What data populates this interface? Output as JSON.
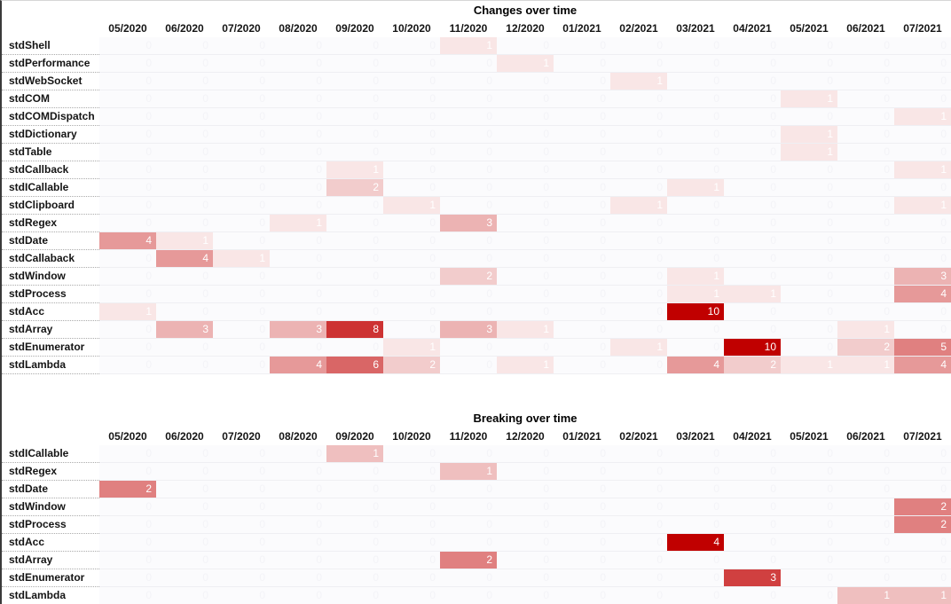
{
  "colors": {
    "heat_min": "#FFFFFF",
    "heat_max": "#C00000",
    "zero_cell_bg": "#FBFBFD",
    "value_text": "#FFFFFF",
    "label_text": "#141414"
  },
  "columns": [
    "05/2020",
    "06/2020",
    "07/2020",
    "08/2020",
    "09/2020",
    "10/2020",
    "11/2020",
    "12/2020",
    "01/2021",
    "02/2021",
    "03/2021",
    "04/2021",
    "05/2021",
    "06/2021",
    "07/2021"
  ],
  "chart_data": [
    {
      "type": "heatmap",
      "title": "Changes over time",
      "x": [
        "05/2020",
        "06/2020",
        "07/2020",
        "08/2020",
        "09/2020",
        "10/2020",
        "11/2020",
        "12/2020",
        "01/2021",
        "02/2021",
        "03/2021",
        "04/2021",
        "05/2021",
        "06/2021",
        "07/2021"
      ],
      "rows": [
        "stdShell",
        "stdPerformance",
        "stdWebSocket",
        "stdCOM",
        "stdCOMDispatch",
        "stdDictionary",
        "stdTable",
        "stdCallback",
        "stdICallable",
        "stdClipboard",
        "stdRegex",
        "stdDate",
        "stdCallaback",
        "stdWindow",
        "stdProcess",
        "stdAcc",
        "stdArray",
        "stdEnumerator",
        "stdLambda"
      ],
      "values": [
        [
          0,
          0,
          0,
          0,
          0,
          0,
          1,
          0,
          0,
          0,
          0,
          0,
          0,
          0,
          0
        ],
        [
          0,
          0,
          0,
          0,
          0,
          0,
          0,
          1,
          0,
          0,
          0,
          0,
          0,
          0,
          0
        ],
        [
          0,
          0,
          0,
          0,
          0,
          0,
          0,
          0,
          0,
          1,
          0,
          0,
          0,
          0,
          0
        ],
        [
          0,
          0,
          0,
          0,
          0,
          0,
          0,
          0,
          0,
          0,
          0,
          0,
          1,
          0,
          0
        ],
        [
          0,
          0,
          0,
          0,
          0,
          0,
          0,
          0,
          0,
          0,
          0,
          0,
          0,
          0,
          1
        ],
        [
          0,
          0,
          0,
          0,
          0,
          0,
          0,
          0,
          0,
          0,
          0,
          0,
          1,
          0,
          0
        ],
        [
          0,
          0,
          0,
          0,
          0,
          0,
          0,
          0,
          0,
          0,
          0,
          0,
          1,
          0,
          0
        ],
        [
          0,
          0,
          0,
          0,
          1,
          0,
          0,
          0,
          0,
          0,
          0,
          0,
          0,
          0,
          1
        ],
        [
          0,
          0,
          0,
          0,
          2,
          0,
          0,
          0,
          0,
          0,
          1,
          0,
          0,
          0,
          0
        ],
        [
          0,
          0,
          0,
          0,
          0,
          1,
          0,
          0,
          0,
          1,
          0,
          0,
          0,
          0,
          1
        ],
        [
          0,
          0,
          0,
          1,
          0,
          0,
          3,
          0,
          0,
          0,
          0,
          0,
          0,
          0,
          0
        ],
        [
          4,
          1,
          0,
          0,
          0,
          0,
          0,
          0,
          0,
          0,
          0,
          0,
          0,
          0,
          0
        ],
        [
          0,
          4,
          1,
          0,
          0,
          0,
          0,
          0,
          0,
          0,
          0,
          0,
          0,
          0,
          0
        ],
        [
          0,
          0,
          0,
          0,
          0,
          0,
          2,
          0,
          0,
          0,
          1,
          0,
          0,
          0,
          3
        ],
        [
          0,
          0,
          0,
          0,
          0,
          0,
          0,
          0,
          0,
          0,
          1,
          1,
          0,
          0,
          4
        ],
        [
          1,
          0,
          0,
          0,
          0,
          0,
          0,
          0,
          0,
          0,
          10,
          0,
          0,
          0,
          0
        ],
        [
          0,
          3,
          0,
          3,
          8,
          0,
          3,
          1,
          0,
          0,
          0,
          0,
          0,
          1,
          0
        ],
        [
          0,
          0,
          0,
          0,
          0,
          1,
          0,
          0,
          0,
          1,
          0,
          10,
          0,
          2,
          5
        ],
        [
          0,
          0,
          0,
          4,
          6,
          2,
          0,
          1,
          0,
          0,
          4,
          2,
          1,
          1,
          4
        ]
      ],
      "color_scale": {
        "min": 0,
        "max": 10,
        "min_color": "#FFFFFF",
        "max_color": "#C00000"
      },
      "legend": false,
      "grid": false
    },
    {
      "type": "heatmap",
      "title": "Breaking over time",
      "x": [
        "05/2020",
        "06/2020",
        "07/2020",
        "08/2020",
        "09/2020",
        "10/2020",
        "11/2020",
        "12/2020",
        "01/2021",
        "02/2021",
        "03/2021",
        "04/2021",
        "05/2021",
        "06/2021",
        "07/2021"
      ],
      "rows": [
        "stdICallable",
        "stdRegex",
        "stdDate",
        "stdWindow",
        "stdProcess",
        "stdAcc",
        "stdArray",
        "stdEnumerator",
        "stdLambda"
      ],
      "values": [
        [
          0,
          0,
          0,
          0,
          1,
          0,
          0,
          0,
          0,
          0,
          0,
          0,
          0,
          0,
          0
        ],
        [
          0,
          0,
          0,
          0,
          0,
          0,
          1,
          0,
          0,
          0,
          0,
          0,
          0,
          0,
          0
        ],
        [
          2,
          0,
          0,
          0,
          0,
          0,
          0,
          0,
          0,
          0,
          0,
          0,
          0,
          0,
          0
        ],
        [
          0,
          0,
          0,
          0,
          0,
          0,
          0,
          0,
          0,
          0,
          0,
          0,
          0,
          0,
          2
        ],
        [
          0,
          0,
          0,
          0,
          0,
          0,
          0,
          0,
          0,
          0,
          0,
          0,
          0,
          0,
          2
        ],
        [
          0,
          0,
          0,
          0,
          0,
          0,
          0,
          0,
          0,
          0,
          4,
          0,
          0,
          0,
          0
        ],
        [
          0,
          0,
          0,
          0,
          0,
          0,
          2,
          0,
          0,
          0,
          0,
          0,
          0,
          0,
          0
        ],
        [
          0,
          0,
          0,
          0,
          0,
          0,
          0,
          0,
          0,
          0,
          0,
          3,
          0,
          0,
          0
        ],
        [
          0,
          0,
          0,
          0,
          0,
          0,
          0,
          0,
          0,
          0,
          0,
          0,
          0,
          1,
          1
        ]
      ],
      "color_scale": {
        "min": 0,
        "max": 4,
        "min_color": "#FFFFFF",
        "max_color": "#C00000"
      },
      "legend": false,
      "grid": false
    }
  ]
}
